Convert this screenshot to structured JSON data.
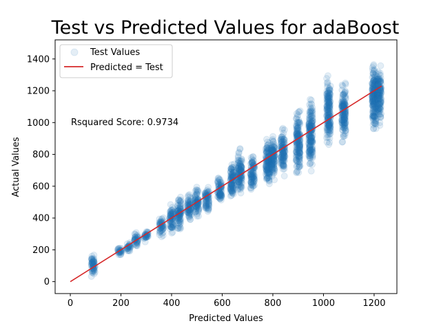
{
  "chart_data": {
    "type": "scatter",
    "title": "Test vs Predicted Values for adaBoost",
    "xlabel": "Predicted Values",
    "ylabel": "Actual Values",
    "xlim": [
      -60,
      1290
    ],
    "ylim": [
      -75,
      1520
    ],
    "xticks": [
      0,
      200,
      400,
      600,
      800,
      1000,
      1200
    ],
    "yticks": [
      0,
      200,
      400,
      600,
      800,
      1000,
      1200,
      1400
    ],
    "grid": false,
    "legend_position": "top-left",
    "annotation": "Rsquared Score: 0.9734",
    "series": [
      {
        "name": "Test Values",
        "kind": "scatter",
        "color": "#1f77b4",
        "clusters": [
          {
            "x": 90,
            "y_range": [
              10,
              190
            ]
          },
          {
            "x": 195,
            "y_range": [
              160,
              220
            ]
          },
          {
            "x": 230,
            "y_range": [
              180,
              260
            ]
          },
          {
            "x": 260,
            "y_range": [
              200,
              320
            ]
          },
          {
            "x": 300,
            "y_range": [
              240,
              340
            ]
          },
          {
            "x": 360,
            "y_range": [
              270,
              430
            ]
          },
          {
            "x": 400,
            "y_range": [
              290,
              510
            ]
          },
          {
            "x": 430,
            "y_range": [
              300,
              560
            ]
          },
          {
            "x": 470,
            "y_range": [
              360,
              570
            ]
          },
          {
            "x": 500,
            "y_range": [
              380,
              610
            ]
          },
          {
            "x": 540,
            "y_range": [
              400,
              620
            ]
          },
          {
            "x": 590,
            "y_range": [
              450,
              680
            ]
          },
          {
            "x": 640,
            "y_range": [
              480,
              790
            ]
          },
          {
            "x": 670,
            "y_range": [
              500,
              860
            ]
          },
          {
            "x": 720,
            "y_range": [
              540,
              820
            ]
          },
          {
            "x": 780,
            "y_range": [
              560,
              950
            ]
          },
          {
            "x": 800,
            "y_range": [
              600,
              960
            ]
          },
          {
            "x": 840,
            "y_range": [
              640,
              1000
            ]
          },
          {
            "x": 900,
            "y_range": [
              620,
              1120
            ]
          },
          {
            "x": 950,
            "y_range": [
              660,
              1220
            ]
          },
          {
            "x": 1020,
            "y_range": [
              800,
              1330
            ]
          },
          {
            "x": 1080,
            "y_range": [
              830,
              1290
            ]
          },
          {
            "x": 1200,
            "y_range": [
              880,
              1440
            ]
          },
          {
            "x": 1220,
            "y_range": [
              950,
              1400
            ]
          }
        ]
      },
      {
        "name": "Predicted = Test",
        "kind": "line",
        "color": "#d62728",
        "x": [
          0,
          1230
        ],
        "y": [
          0,
          1230
        ]
      }
    ]
  }
}
